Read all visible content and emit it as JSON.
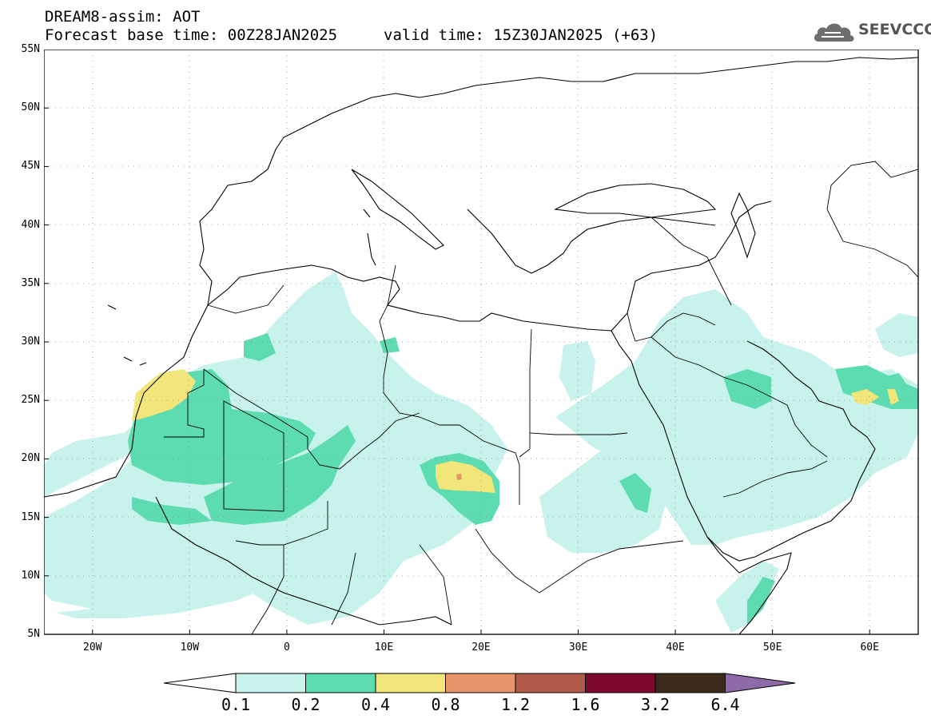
{
  "header": {
    "title_line1": "DREAM8-assim: AOT",
    "base_time": "Forecast base time: 00Z28JAN2025",
    "valid_time": "valid time: 15Z30JAN2025 (+63)"
  },
  "logo": {
    "text": "SEEVCCC",
    "icon": "cloud-icon"
  },
  "map": {
    "lon_labels": [
      "20W",
      "10W",
      "0",
      "10E",
      "20E",
      "30E",
      "40E",
      "50E",
      "60E"
    ],
    "lat_labels": [
      "55N",
      "50N",
      "45N",
      "40N",
      "35N",
      "30N",
      "25N",
      "20N",
      "15N",
      "10N",
      "5N"
    ],
    "lon_range": [
      -25,
      65
    ],
    "lat_range": [
      5,
      55
    ],
    "grid": "dotted"
  },
  "colorbar": {
    "levels": [
      "0.1",
      "0.2",
      "0.4",
      "0.8",
      "1.2",
      "1.6",
      "3.2",
      "6.4"
    ],
    "colors": [
      "#c8f2ec",
      "#5cdcb0",
      "#f2e57a",
      "#e8936a",
      "#b05a4a",
      "#7d0a2a",
      "#3c2a1a",
      "#8e6aa8"
    ]
  }
}
